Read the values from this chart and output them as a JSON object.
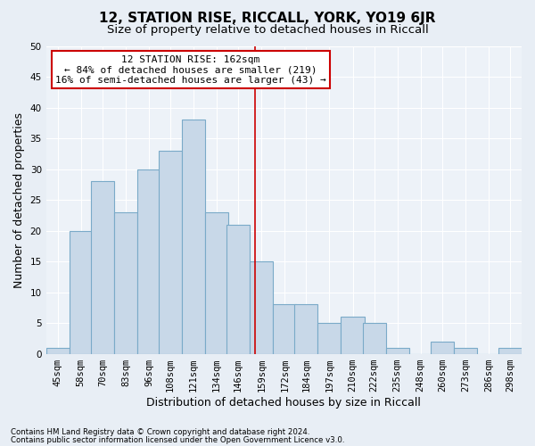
{
  "title": "12, STATION RISE, RICCALL, YORK, YO19 6JR",
  "subtitle": "Size of property relative to detached houses in Riccall",
  "xlabel": "Distribution of detached houses by size in Riccall",
  "ylabel": "Number of detached properties",
  "categories": [
    "45sqm",
    "58sqm",
    "70sqm",
    "83sqm",
    "96sqm",
    "108sqm",
    "121sqm",
    "134sqm",
    "146sqm",
    "159sqm",
    "172sqm",
    "184sqm",
    "197sqm",
    "210sqm",
    "222sqm",
    "235sqm",
    "248sqm",
    "260sqm",
    "273sqm",
    "286sqm",
    "298sqm"
  ],
  "values": [
    1,
    20,
    28,
    23,
    30,
    33,
    38,
    23,
    21,
    15,
    8,
    8,
    5,
    6,
    5,
    1,
    0,
    2,
    1,
    0,
    1
  ],
  "bar_color": "#c8d8e8",
  "bar_edge_color": "#7aaac8",
  "vline_x": 162,
  "vline_color": "#cc0000",
  "bin_width": 13,
  "bin_starts": [
    45,
    58,
    70,
    83,
    96,
    108,
    121,
    134,
    146,
    159,
    172,
    184,
    197,
    210,
    222,
    235,
    248,
    260,
    273,
    286,
    298
  ],
  "annotation_text": "12 STATION RISE: 162sqm\n← 84% of detached houses are smaller (219)\n16% of semi-detached houses are larger (43) →",
  "annotation_box_color": "#ffffff",
  "annotation_box_edge_color": "#cc0000",
  "footer1": "Contains HM Land Registry data © Crown copyright and database right 2024.",
  "footer2": "Contains public sector information licensed under the Open Government Licence v3.0.",
  "ylim": [
    0,
    50
  ],
  "yticks": [
    0,
    5,
    10,
    15,
    20,
    25,
    30,
    35,
    40,
    45,
    50
  ],
  "bg_color": "#e8eef5",
  "plot_bg_color": "#edf2f8",
  "title_fontsize": 11,
  "subtitle_fontsize": 9.5,
  "axis_label_fontsize": 9,
  "tick_fontsize": 7.5
}
